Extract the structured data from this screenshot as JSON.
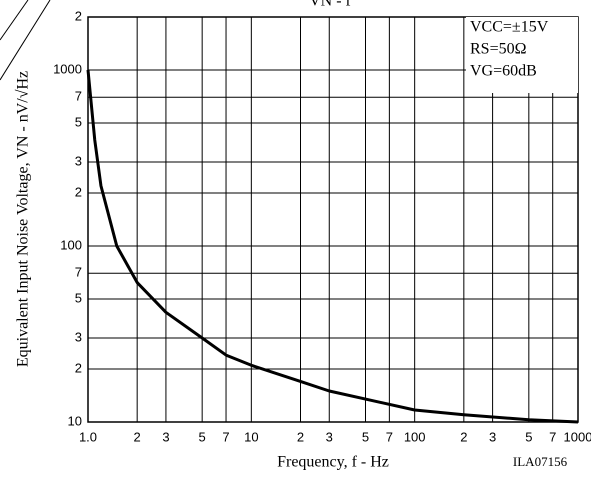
{
  "chart_data": {
    "type": "line",
    "title": "VN - f",
    "x_label": "Frequency, f - Hz",
    "y_label": "Equivalent Input Noise Voltage, VN - nV/√Hz",
    "annotations": [
      "VCC=±15V",
      "RS=50Ω",
      "VG=60dB"
    ],
    "figure_id": "ILA07156",
    "x": [
      1,
      1.1,
      1.2,
      1.5,
      2,
      3,
      5,
      7,
      10,
      20,
      30,
      50,
      100,
      200,
      500,
      1000
    ],
    "series": [
      {
        "name": "VN",
        "color": "#000000",
        "values": [
          1000,
          400,
          220,
          100,
          62,
          42,
          30,
          24,
          21,
          17,
          15,
          13.5,
          11.7,
          11,
          10.3,
          10
        ]
      }
    ],
    "xlim": [
      1,
      1000
    ],
    "ylim": [
      10,
      2000
    ],
    "log_x": true,
    "log_y": true,
    "grid": true,
    "xticks": [
      {
        "value": 1,
        "label": "1.0"
      },
      2,
      3,
      5,
      7,
      10,
      {
        "value": 20,
        "label": "2"
      },
      {
        "value": 30,
        "label": "3"
      },
      {
        "value": 50,
        "label": "5"
      },
      {
        "value": 70,
        "label": "7"
      },
      100,
      {
        "value": 200,
        "label": "2"
      },
      {
        "value": 300,
        "label": "3"
      },
      {
        "value": 500,
        "label": "5"
      },
      {
        "value": 700,
        "label": "7"
      },
      1000
    ],
    "yticks": [
      10,
      {
        "value": 20,
        "label": "2"
      },
      {
        "value": 30,
        "label": "3"
      },
      {
        "value": 50,
        "label": "5"
      },
      {
        "value": 70,
        "label": "7"
      },
      100,
      {
        "value": 200,
        "label": "2"
      },
      {
        "value": 300,
        "label": "3"
      },
      {
        "value": 500,
        "label": "5"
      },
      {
        "value": 700,
        "label": "7"
      },
      1000,
      {
        "value": 2000,
        "label": "2"
      }
    ]
  }
}
